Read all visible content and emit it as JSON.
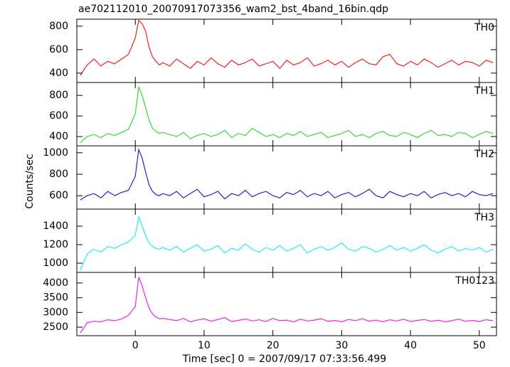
{
  "title": "ae702112010_20070917073356_wam2_bst_4band_16bin.qdp",
  "y_label": "Counts/sec",
  "x_label": "Time [sec] 0 = 2007/09/17 07:33:56.499",
  "chart_data": [
    {
      "type": "line",
      "label": "TH0",
      "color": "#ee2222",
      "x": [
        -8,
        -7,
        -6,
        -5,
        -4,
        -3,
        -2,
        -1,
        0,
        0.5,
        1,
        1.5,
        2,
        2.5,
        3,
        3.5,
        4,
        5,
        6,
        7,
        8,
        9,
        10,
        11,
        12,
        13,
        14,
        15,
        16,
        17,
        18,
        19,
        20,
        21,
        22,
        23,
        24,
        25,
        26,
        27,
        28,
        29,
        30,
        31,
        32,
        33,
        34,
        35,
        36,
        37,
        38,
        39,
        40,
        41,
        42,
        43,
        44,
        45,
        46,
        47,
        48,
        49,
        50,
        51,
        52
      ],
      "values": [
        380,
        470,
        520,
        460,
        500,
        480,
        520,
        560,
        700,
        850,
        820,
        760,
        620,
        540,
        500,
        470,
        490,
        460,
        520,
        480,
        440,
        500,
        470,
        530,
        480,
        450,
        510,
        470,
        490,
        520,
        460,
        480,
        500,
        440,
        510,
        470,
        490,
        530,
        460,
        480,
        510,
        470,
        500,
        450,
        490,
        520,
        480,
        470,
        540,
        560,
        480,
        460,
        500,
        470,
        520,
        490,
        450,
        480,
        510,
        470,
        500,
        490,
        460,
        510,
        490
      ],
      "xlim": [
        -8.5,
        52.5
      ],
      "xticks": [
        0,
        10,
        20,
        30,
        40,
        50
      ],
      "ylim": [
        320,
        860
      ],
      "yticks": [
        400,
        600,
        800
      ]
    },
    {
      "type": "line",
      "label": "TH1",
      "color": "#33dd33",
      "x": [
        -8,
        -7,
        -6,
        -5,
        -4,
        -3,
        -2,
        -1,
        0,
        0.5,
        1,
        1.5,
        2,
        2.5,
        3,
        3.5,
        4,
        5,
        6,
        7,
        8,
        9,
        10,
        11,
        12,
        13,
        14,
        15,
        16,
        17,
        18,
        19,
        20,
        21,
        22,
        23,
        24,
        25,
        26,
        27,
        28,
        29,
        30,
        31,
        32,
        33,
        34,
        35,
        36,
        37,
        38,
        39,
        40,
        41,
        42,
        43,
        44,
        45,
        46,
        47,
        48,
        49,
        50,
        51,
        52
      ],
      "values": [
        340,
        400,
        420,
        390,
        430,
        410,
        440,
        470,
        620,
        880,
        800,
        680,
        560,
        480,
        450,
        430,
        440,
        420,
        400,
        440,
        380,
        410,
        430,
        400,
        420,
        460,
        390,
        430,
        410,
        480,
        440,
        400,
        420,
        390,
        430,
        410,
        450,
        400,
        420,
        440,
        390,
        410,
        430,
        460,
        400,
        420,
        390,
        430,
        450,
        410,
        400,
        440,
        420,
        390,
        430,
        460,
        410,
        420,
        400,
        440,
        430,
        390,
        420,
        450,
        430
      ],
      "xlim": [
        -8.5,
        52.5
      ],
      "xticks": [
        0,
        10,
        20,
        30,
        40,
        50
      ],
      "ylim": [
        310,
        925
      ],
      "yticks": [
        400,
        600,
        800
      ]
    },
    {
      "type": "line",
      "label": "TH2",
      "color": "#2222cc",
      "x": [
        -8,
        -7,
        -6,
        -5,
        -4,
        -3,
        -2,
        -1,
        0,
        0.5,
        1,
        1.5,
        2,
        2.5,
        3,
        3.5,
        4,
        5,
        6,
        7,
        8,
        9,
        10,
        11,
        12,
        13,
        14,
        15,
        16,
        17,
        18,
        19,
        20,
        21,
        22,
        23,
        24,
        25,
        26,
        27,
        28,
        29,
        30,
        31,
        32,
        33,
        34,
        35,
        36,
        37,
        38,
        39,
        40,
        41,
        42,
        43,
        44,
        45,
        46,
        47,
        48,
        49,
        50,
        51,
        52
      ],
      "values": [
        560,
        600,
        620,
        580,
        640,
        600,
        630,
        650,
        780,
        1030,
        950,
        820,
        700,
        640,
        610,
        600,
        620,
        600,
        640,
        580,
        620,
        660,
        590,
        610,
        640,
        570,
        620,
        600,
        650,
        590,
        620,
        640,
        600,
        580,
        630,
        610,
        650,
        590,
        620,
        600,
        640,
        580,
        610,
        630,
        590,
        620,
        660,
        600,
        580,
        640,
        610,
        590,
        620,
        600,
        640,
        580,
        610,
        630,
        600,
        620,
        590,
        640,
        610,
        600,
        620
      ],
      "xlim": [
        -8.5,
        52.5
      ],
      "xticks": [
        0,
        10,
        20,
        30,
        40,
        50
      ],
      "ylim": [
        475,
        1065
      ],
      "yticks": [
        600,
        800,
        1000
      ]
    },
    {
      "type": "line",
      "label": "TH3",
      "color": "#22eeee",
      "x": [
        -8,
        -7,
        -6,
        -5,
        -4,
        -3,
        -2,
        -1,
        0,
        0.5,
        1,
        1.5,
        2,
        2.5,
        3,
        3.5,
        4,
        5,
        6,
        7,
        8,
        9,
        10,
        11,
        12,
        13,
        14,
        15,
        16,
        17,
        18,
        19,
        20,
        21,
        22,
        23,
        24,
        25,
        26,
        27,
        28,
        29,
        30,
        31,
        32,
        33,
        34,
        35,
        36,
        37,
        38,
        39,
        40,
        41,
        42,
        43,
        44,
        45,
        46,
        47,
        48,
        49,
        50,
        51,
        52
      ],
      "values": [
        920,
        1100,
        1150,
        1120,
        1180,
        1160,
        1200,
        1230,
        1300,
        1500,
        1400,
        1300,
        1220,
        1180,
        1160,
        1150,
        1170,
        1140,
        1180,
        1120,
        1160,
        1200,
        1130,
        1150,
        1190,
        1110,
        1160,
        1140,
        1210,
        1150,
        1120,
        1170,
        1140,
        1190,
        1130,
        1160,
        1200,
        1110,
        1150,
        1180,
        1140,
        1170,
        1220,
        1150,
        1130,
        1180,
        1160,
        1120,
        1150,
        1190,
        1140,
        1170,
        1130,
        1160,
        1200,
        1140,
        1110,
        1150,
        1180,
        1130,
        1160,
        1140,
        1170,
        1120,
        1150
      ],
      "xlim": [
        -8.5,
        52.5
      ],
      "xticks": [
        0,
        10,
        20,
        30,
        40,
        50
      ],
      "ylim": [
        900,
        1585
      ],
      "yticks": [
        1000,
        1200,
        1400
      ]
    },
    {
      "type": "line",
      "label": "TH0123",
      "color": "#ee22ee",
      "x": [
        -8,
        -7,
        -6,
        -5,
        -4,
        -3,
        -2,
        -1,
        0,
        0.5,
        1,
        1.5,
        2,
        2.5,
        3,
        3.5,
        4,
        5,
        6,
        7,
        8,
        9,
        10,
        11,
        12,
        13,
        14,
        15,
        16,
        17,
        18,
        19,
        20,
        21,
        22,
        23,
        24,
        25,
        26,
        27,
        28,
        29,
        30,
        31,
        32,
        33,
        34,
        35,
        36,
        37,
        38,
        39,
        40,
        41,
        42,
        43,
        44,
        45,
        46,
        47,
        48,
        49,
        50,
        51,
        52
      ],
      "values": [
        2300,
        2650,
        2700,
        2680,
        2750,
        2720,
        2780,
        2900,
        3200,
        4200,
        3900,
        3500,
        3150,
        2950,
        2850,
        2780,
        2800,
        2760,
        2720,
        2800,
        2680,
        2740,
        2790,
        2700,
        2760,
        2820,
        2690,
        2730,
        2780,
        2710,
        2750,
        2690,
        2800,
        2720,
        2740,
        2680,
        2770,
        2710,
        2740,
        2790,
        2700,
        2730,
        2680,
        2760,
        2720,
        2790,
        2700,
        2740,
        2680,
        2750,
        2710,
        2770,
        2690,
        2730,
        2760,
        2700,
        2740,
        2680,
        2720,
        2770,
        2700,
        2730,
        2690,
        2750,
        2720
      ],
      "xlim": [
        -8.5,
        52.5
      ],
      "xticks": [
        0,
        10,
        20,
        30,
        40,
        50
      ],
      "ylim": [
        2210,
        4360
      ],
      "yticks": [
        2500,
        3000,
        3500,
        4000
      ]
    }
  ]
}
